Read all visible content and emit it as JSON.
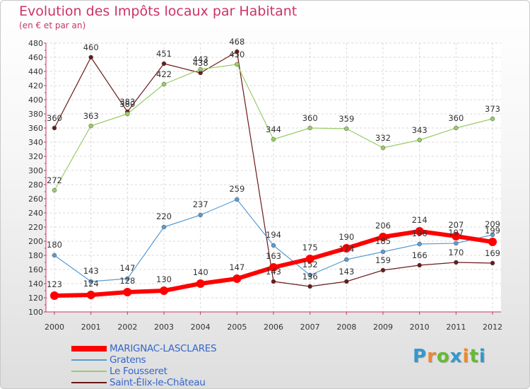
{
  "chart_data": {
    "type": "line",
    "title": "Evolution des Impôts locaux par Habitant",
    "subtitle": "(en € et par an)",
    "xlabel": "",
    "ylabel": "",
    "ylim": [
      100,
      480
    ],
    "y_ticks": [
      100,
      120,
      140,
      160,
      180,
      200,
      220,
      240,
      260,
      280,
      300,
      320,
      340,
      360,
      380,
      400,
      420,
      440,
      460,
      480
    ],
    "x": [
      "2000",
      "2001",
      "2002",
      "2003",
      "2004",
      "2005",
      "2006",
      "2007",
      "2008",
      "2009",
      "2010",
      "2011",
      "2012"
    ],
    "grid": true,
    "legend_position": "bottom-left",
    "series": [
      {
        "name": "Saint-Élix-le-Château",
        "color": "#6b1a1a",
        "values": [
          360,
          460,
          383,
          451,
          438,
          468,
          143,
          136,
          143,
          159,
          166,
          170,
          169
        ],
        "labels": [
          "360",
          "460",
          "383",
          "451",
          "438",
          "468",
          "143",
          "136",
          "143",
          "159",
          "166",
          "170",
          "169"
        ]
      },
      {
        "name": "Le Fousseret",
        "color": "#99cc66",
        "values": [
          272,
          363,
          380,
          422,
          443,
          450,
          344,
          360,
          359,
          332,
          343,
          360,
          373
        ],
        "labels": [
          "272",
          "363",
          "380",
          "422",
          "443",
          "450",
          "344",
          "360",
          "359",
          "332",
          "343",
          "360",
          "373"
        ]
      },
      {
        "name": "Gratens",
        "color": "#5b9bd0",
        "values": [
          180,
          143,
          147,
          220,
          237,
          259,
          194,
          152,
          174,
          185,
          196,
          197,
          209
        ],
        "labels": [
          "180",
          "143",
          "147",
          "220",
          "237",
          "259",
          "194",
          "152",
          "174",
          "185",
          "196",
          "197",
          "209"
        ]
      },
      {
        "name": "MARIGNAC-LASCLARES",
        "color": "#ff0000",
        "values": [
          123,
          124,
          128,
          130,
          140,
          147,
          163,
          175,
          190,
          206,
          214,
          207,
          199
        ],
        "labels": [
          "123",
          "124",
          "128",
          "130",
          "140",
          "147",
          "163",
          "175",
          "190",
          "206",
          "214",
          "207",
          "199"
        ]
      }
    ],
    "legend": [
      {
        "name": "MARIGNAC-LASCLARES",
        "color": "#ff0000"
      },
      {
        "name": "Gratens",
        "color": "#5b9bd0"
      },
      {
        "name": "Le Fousseret",
        "color": "#99cc66"
      },
      {
        "name": "Saint-Élix-le-Château",
        "color": "#6b1a1a"
      }
    ]
  },
  "logo": {
    "letters": [
      "P",
      "r",
      "o",
      "x",
      "i",
      "t",
      "i"
    ],
    "colors": [
      "#3399cc",
      "#ee8833",
      "#66bb33",
      "#3399cc",
      "#ee8833",
      "#66bb33",
      "#3399cc"
    ]
  }
}
